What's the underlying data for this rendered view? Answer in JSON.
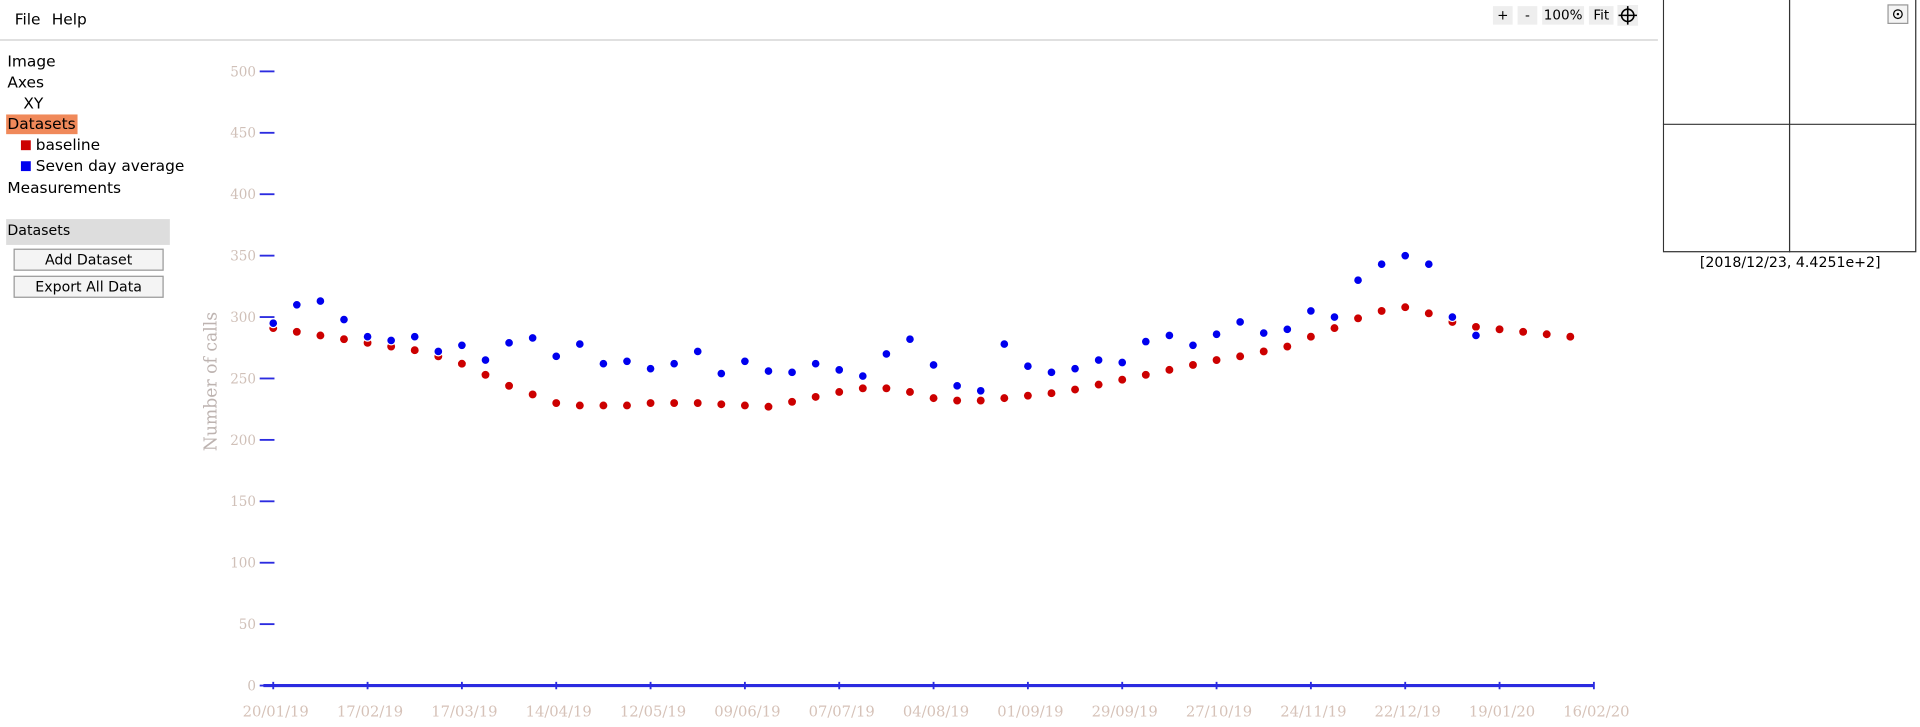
{
  "menu": [
    "File",
    "Help"
  ],
  "toolbar": {
    "zoom_in": "+",
    "zoom_out": "-",
    "zoom": "100%",
    "fit": "Fit"
  },
  "tree": {
    "image": "Image",
    "axes": "Axes",
    "xy": "XY",
    "datasets": "Datasets",
    "measurements": "Measurements"
  },
  "panel": {
    "title": "Datasets",
    "buttons": [
      "Add Dataset",
      "Export All Data"
    ]
  },
  "zoom_view": {
    "cursor": "[2018/12/23, 4.4251e+2]"
  },
  "chart_data": {
    "type": "scatter",
    "y_label": "Number of calls",
    "xlim": [
      "20/01/19",
      "16/02/20"
    ],
    "xticks": [
      "20/01/19",
      "17/02/19",
      "17/03/19",
      "14/04/19",
      "12/05/19",
      "09/06/19",
      "07/07/19",
      "04/08/19",
      "01/09/19",
      "29/09/19",
      "27/10/19",
      "24/11/19",
      "22/12/19",
      "19/01/20",
      "16/02/20"
    ],
    "ylim": [
      0,
      500
    ],
    "yticks": [
      0,
      50,
      100,
      150,
      200,
      250,
      300,
      350,
      400,
      450,
      500
    ],
    "series": [
      {
        "name": "baseline",
        "color": "#cc0000",
        "x": [
          "20/01/19",
          "27/01/19",
          "03/02/19",
          "10/02/19",
          "17/02/19",
          "24/02/19",
          "03/03/19",
          "10/03/19",
          "17/03/19",
          "24/03/19",
          "31/03/19",
          "07/04/19",
          "14/04/19",
          "21/04/19",
          "28/04/19",
          "05/05/19",
          "12/05/19",
          "19/05/19",
          "26/05/19",
          "02/06/19",
          "09/06/19",
          "16/06/19",
          "23/06/19",
          "30/06/19",
          "07/07/19",
          "14/07/19",
          "21/07/19",
          "28/07/19",
          "04/08/19",
          "11/08/19",
          "18/08/19",
          "25/08/19",
          "01/09/19",
          "08/09/19",
          "15/09/19",
          "22/09/19",
          "29/09/19",
          "06/10/19",
          "13/10/19",
          "20/10/19",
          "27/10/19",
          "03/11/19",
          "10/11/19",
          "17/11/19",
          "24/11/19",
          "01/12/19",
          "08/12/19",
          "15/12/19",
          "22/12/19",
          "29/12/19",
          "05/01/20",
          "12/01/20",
          "19/01/20",
          "26/01/20",
          "02/02/20",
          "09/02/20"
        ],
        "values": [
          291,
          288,
          285,
          282,
          279,
          276,
          273,
          268,
          262,
          253,
          244,
          237,
          230,
          228,
          228,
          228,
          230,
          230,
          230,
          229,
          228,
          227,
          231,
          235,
          239,
          242,
          242,
          239,
          234,
          232,
          232,
          234,
          236,
          238,
          241,
          245,
          249,
          253,
          257,
          261,
          265,
          268,
          272,
          276,
          284,
          291,
          299,
          305,
          308,
          303,
          296,
          292,
          290,
          288,
          286,
          284
        ]
      },
      {
        "name": "Seven day average",
        "color": "#0000ee",
        "x": [
          "20/01/19",
          "27/01/19",
          "03/02/19",
          "10/02/19",
          "17/02/19",
          "24/02/19",
          "03/03/19",
          "10/03/19",
          "17/03/19",
          "24/03/19",
          "31/03/19",
          "07/04/19",
          "14/04/19",
          "21/04/19",
          "28/04/19",
          "05/05/19",
          "12/05/19",
          "19/05/19",
          "26/05/19",
          "02/06/19",
          "09/06/19",
          "16/06/19",
          "23/06/19",
          "30/06/19",
          "07/07/19",
          "14/07/19",
          "21/07/19",
          "28/07/19",
          "04/08/19",
          "11/08/19",
          "18/08/19",
          "25/08/19",
          "01/09/19",
          "08/09/19",
          "15/09/19",
          "22/09/19",
          "29/09/19",
          "06/10/19",
          "13/10/19",
          "20/10/19",
          "27/10/19",
          "03/11/19",
          "10/11/19",
          "17/11/19",
          "24/11/19",
          "01/12/19",
          "08/12/19",
          "15/12/19",
          "22/12/19",
          "29/12/19",
          "05/01/20",
          "12/01/20"
        ],
        "values": [
          295,
          310,
          313,
          298,
          284,
          281,
          284,
          272,
          277,
          265,
          279,
          283,
          268,
          278,
          262,
          264,
          258,
          262,
          272,
          254,
          264,
          256,
          255,
          262,
          257,
          252,
          270,
          282,
          261,
          244,
          240,
          278,
          260,
          255,
          258,
          265,
          263,
          280,
          285,
          277,
          286,
          296,
          287,
          290,
          305,
          300,
          330,
          343,
          350,
          343,
          300,
          285
        ]
      }
    ]
  }
}
